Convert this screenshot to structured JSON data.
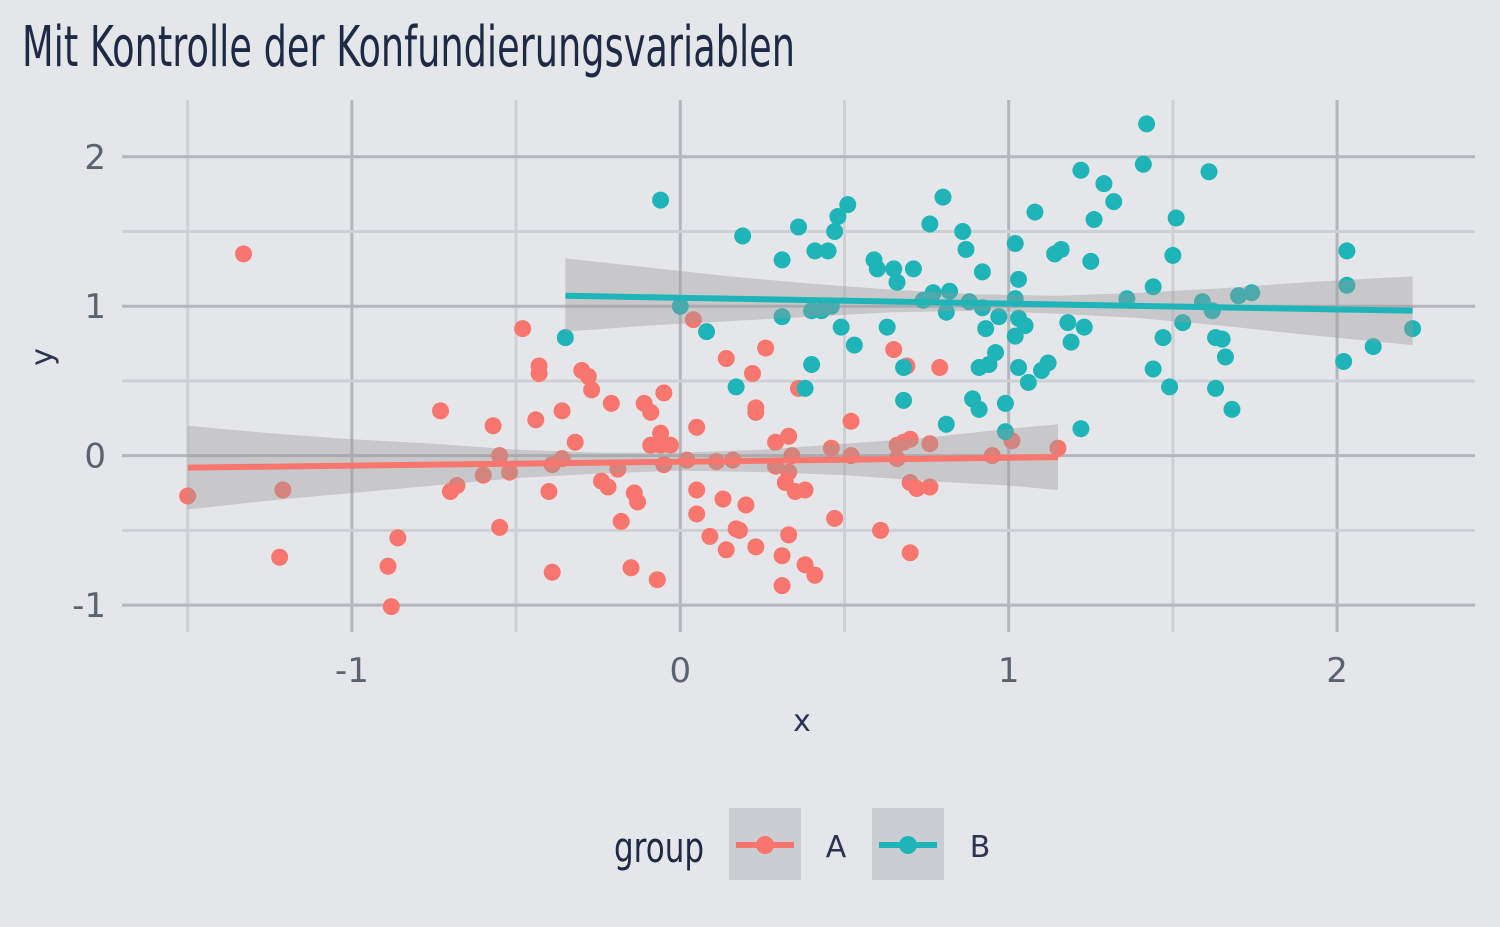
{
  "chart_data": {
    "type": "scatter",
    "title": "Mit Kontrolle der Konfundierungsvariablen",
    "xlabel": "x",
    "ylabel": "y",
    "xlim": [
      -1.7,
      2.42
    ],
    "ylim": [
      -1.18,
      2.38
    ],
    "x_ticks": [
      -1,
      0,
      1,
      2
    ],
    "y_ticks": [
      -1,
      0,
      1,
      2
    ],
    "grid": true,
    "legend": {
      "title": "group",
      "position": "bottom"
    },
    "series": [
      {
        "name": "A",
        "color": "#F8766D",
        "x": [
          -1.5,
          -1.33,
          -1.21,
          -1.22,
          -0.89,
          -0.86,
          -0.88,
          -0.73,
          -0.7,
          -0.68,
          -0.6,
          -0.57,
          -0.55,
          -0.55,
          -0.52,
          -0.48,
          -0.44,
          -0.43,
          -0.43,
          -0.4,
          -0.39,
          -0.39,
          -0.36,
          -0.36,
          -0.32,
          -0.3,
          -0.28,
          -0.27,
          -0.24,
          -0.22,
          -0.21,
          -0.19,
          -0.18,
          -0.15,
          -0.14,
          -0.13,
          -0.11,
          -0.09,
          -0.09,
          -0.07,
          -0.06,
          -0.06,
          -0.05,
          -0.05,
          -0.03,
          0.02,
          0.04,
          0.05,
          0.05,
          0.05,
          0.09,
          0.11,
          0.13,
          0.14,
          0.14,
          0.16,
          0.17,
          0.18,
          0.2,
          0.22,
          0.23,
          0.23,
          0.23,
          0.26,
          0.29,
          0.29,
          0.31,
          0.31,
          0.32,
          0.33,
          0.33,
          0.33,
          0.34,
          0.35,
          0.36,
          0.38,
          0.38,
          0.41,
          0.46,
          0.47,
          0.52,
          0.52,
          0.61,
          0.65,
          0.66,
          0.66,
          0.68,
          0.69,
          0.7,
          0.7,
          0.7,
          0.72,
          0.76,
          0.76,
          0.79,
          0.95,
          1.01,
          1.15
        ],
        "y": [
          -0.27,
          1.35,
          -0.23,
          -0.68,
          -0.74,
          -0.55,
          -1.01,
          0.3,
          -0.24,
          -0.2,
          -0.13,
          0.2,
          0.0,
          -0.48,
          -0.11,
          0.85,
          0.24,
          0.6,
          0.55,
          -0.24,
          -0.78,
          -0.06,
          0.3,
          -0.02,
          0.09,
          0.57,
          0.53,
          0.44,
          -0.17,
          -0.21,
          0.35,
          -0.09,
          -0.44,
          -0.75,
          -0.25,
          -0.31,
          0.35,
          0.29,
          0.07,
          -0.83,
          0.15,
          0.07,
          0.42,
          -0.06,
          0.07,
          -0.03,
          0.91,
          0.19,
          -0.23,
          -0.39,
          -0.54,
          -0.04,
          -0.29,
          0.65,
          -0.63,
          -0.03,
          -0.49,
          -0.5,
          -0.33,
          0.55,
          0.29,
          0.32,
          -0.61,
          0.72,
          0.09,
          -0.07,
          -0.67,
          -0.87,
          -0.18,
          0.13,
          -0.53,
          -0.11,
          0.0,
          -0.24,
          0.45,
          -0.23,
          -0.73,
          -0.8,
          0.05,
          -0.42,
          0.23,
          0.0,
          -0.5,
          0.71,
          0.07,
          -0.02,
          0.09,
          0.6,
          0.11,
          -0.18,
          -0.65,
          -0.22,
          -0.21,
          0.08,
          0.59,
          0.0,
          0.1,
          0.05
        ],
        "fit": {
          "x": [
            -1.5,
            1.15
          ],
          "y": [
            -0.08,
            -0.01
          ]
        },
        "band": {
          "x": [
            -1.5,
            -1.25,
            -1.0,
            -0.75,
            -0.5,
            -0.25,
            0.0,
            0.25,
            0.5,
            0.75,
            1.0,
            1.15
          ],
          "lower": [
            -0.36,
            -0.3,
            -0.25,
            -0.2,
            -0.15,
            -0.12,
            -0.1,
            -0.11,
            -0.13,
            -0.17,
            -0.2,
            -0.23
          ],
          "upper": [
            0.2,
            0.15,
            0.11,
            0.08,
            0.04,
            0.02,
            0.02,
            0.04,
            0.08,
            0.12,
            0.18,
            0.21
          ]
        }
      },
      {
        "name": "B",
        "color": "#1FB5B8",
        "x": [
          -0.35,
          -0.06,
          0.0,
          0.08,
          0.17,
          0.19,
          0.31,
          0.31,
          0.36,
          0.38,
          0.4,
          0.4,
          0.41,
          0.43,
          0.45,
          0.46,
          0.47,
          0.48,
          0.49,
          0.51,
          0.53,
          0.59,
          0.6,
          0.63,
          0.65,
          0.66,
          0.68,
          0.68,
          0.71,
          0.74,
          0.76,
          0.77,
          0.8,
          0.81,
          0.81,
          0.82,
          0.86,
          0.87,
          0.88,
          0.89,
          0.91,
          0.91,
          0.92,
          0.92,
          0.93,
          0.94,
          0.96,
          0.97,
          0.99,
          0.99,
          1.02,
          1.02,
          1.02,
          1.03,
          1.03,
          1.03,
          1.05,
          1.06,
          1.08,
          1.1,
          1.12,
          1.14,
          1.16,
          1.18,
          1.19,
          1.22,
          1.22,
          1.23,
          1.25,
          1.26,
          1.29,
          1.32,
          1.36,
          1.41,
          1.42,
          1.44,
          1.44,
          1.47,
          1.49,
          1.5,
          1.51,
          1.53,
          1.59,
          1.61,
          1.62,
          1.63,
          1.63,
          1.65,
          1.66,
          1.68,
          1.7,
          1.74,
          2.02,
          2.03,
          2.03,
          2.11,
          2.23
        ],
        "y": [
          0.79,
          1.71,
          1.0,
          0.83,
          0.46,
          1.47,
          1.31,
          0.93,
          1.53,
          0.45,
          0.97,
          0.61,
          1.37,
          0.97,
          1.37,
          1.0,
          1.5,
          1.6,
          0.86,
          1.68,
          0.74,
          1.31,
          1.25,
          0.86,
          1.25,
          1.16,
          0.59,
          0.37,
          1.25,
          1.04,
          1.55,
          1.09,
          1.73,
          0.96,
          0.21,
          1.1,
          1.5,
          1.38,
          1.03,
          0.38,
          0.31,
          0.59,
          0.99,
          1.23,
          0.85,
          0.61,
          0.69,
          0.93,
          0.16,
          0.35,
          0.8,
          1.05,
          1.42,
          0.92,
          1.18,
          0.59,
          0.87,
          0.49,
          1.63,
          0.57,
          0.62,
          1.35,
          1.38,
          0.89,
          0.76,
          0.18,
          1.91,
          0.86,
          1.3,
          1.58,
          1.82,
          1.7,
          1.05,
          1.95,
          2.22,
          1.13,
          0.58,
          0.79,
          0.46,
          1.34,
          1.59,
          0.89,
          1.03,
          1.9,
          0.97,
          0.45,
          0.79,
          0.78,
          0.66,
          0.31,
          1.07,
          1.09,
          0.63,
          1.14,
          1.37,
          0.73,
          0.85
        ],
        "fit": {
          "x": [
            -0.35,
            2.23
          ],
          "y": [
            1.07,
            0.97
          ]
        },
        "band": {
          "x": [
            -0.35,
            -0.1,
            0.15,
            0.4,
            0.65,
            0.9,
            1.15,
            1.4,
            1.65,
            1.9,
            2.23
          ],
          "lower": [
            0.83,
            0.87,
            0.9,
            0.93,
            0.96,
            0.97,
            0.95,
            0.92,
            0.87,
            0.81,
            0.74
          ],
          "upper": [
            1.32,
            1.26,
            1.2,
            1.15,
            1.11,
            1.08,
            1.07,
            1.09,
            1.12,
            1.16,
            1.2
          ]
        }
      }
    ]
  }
}
